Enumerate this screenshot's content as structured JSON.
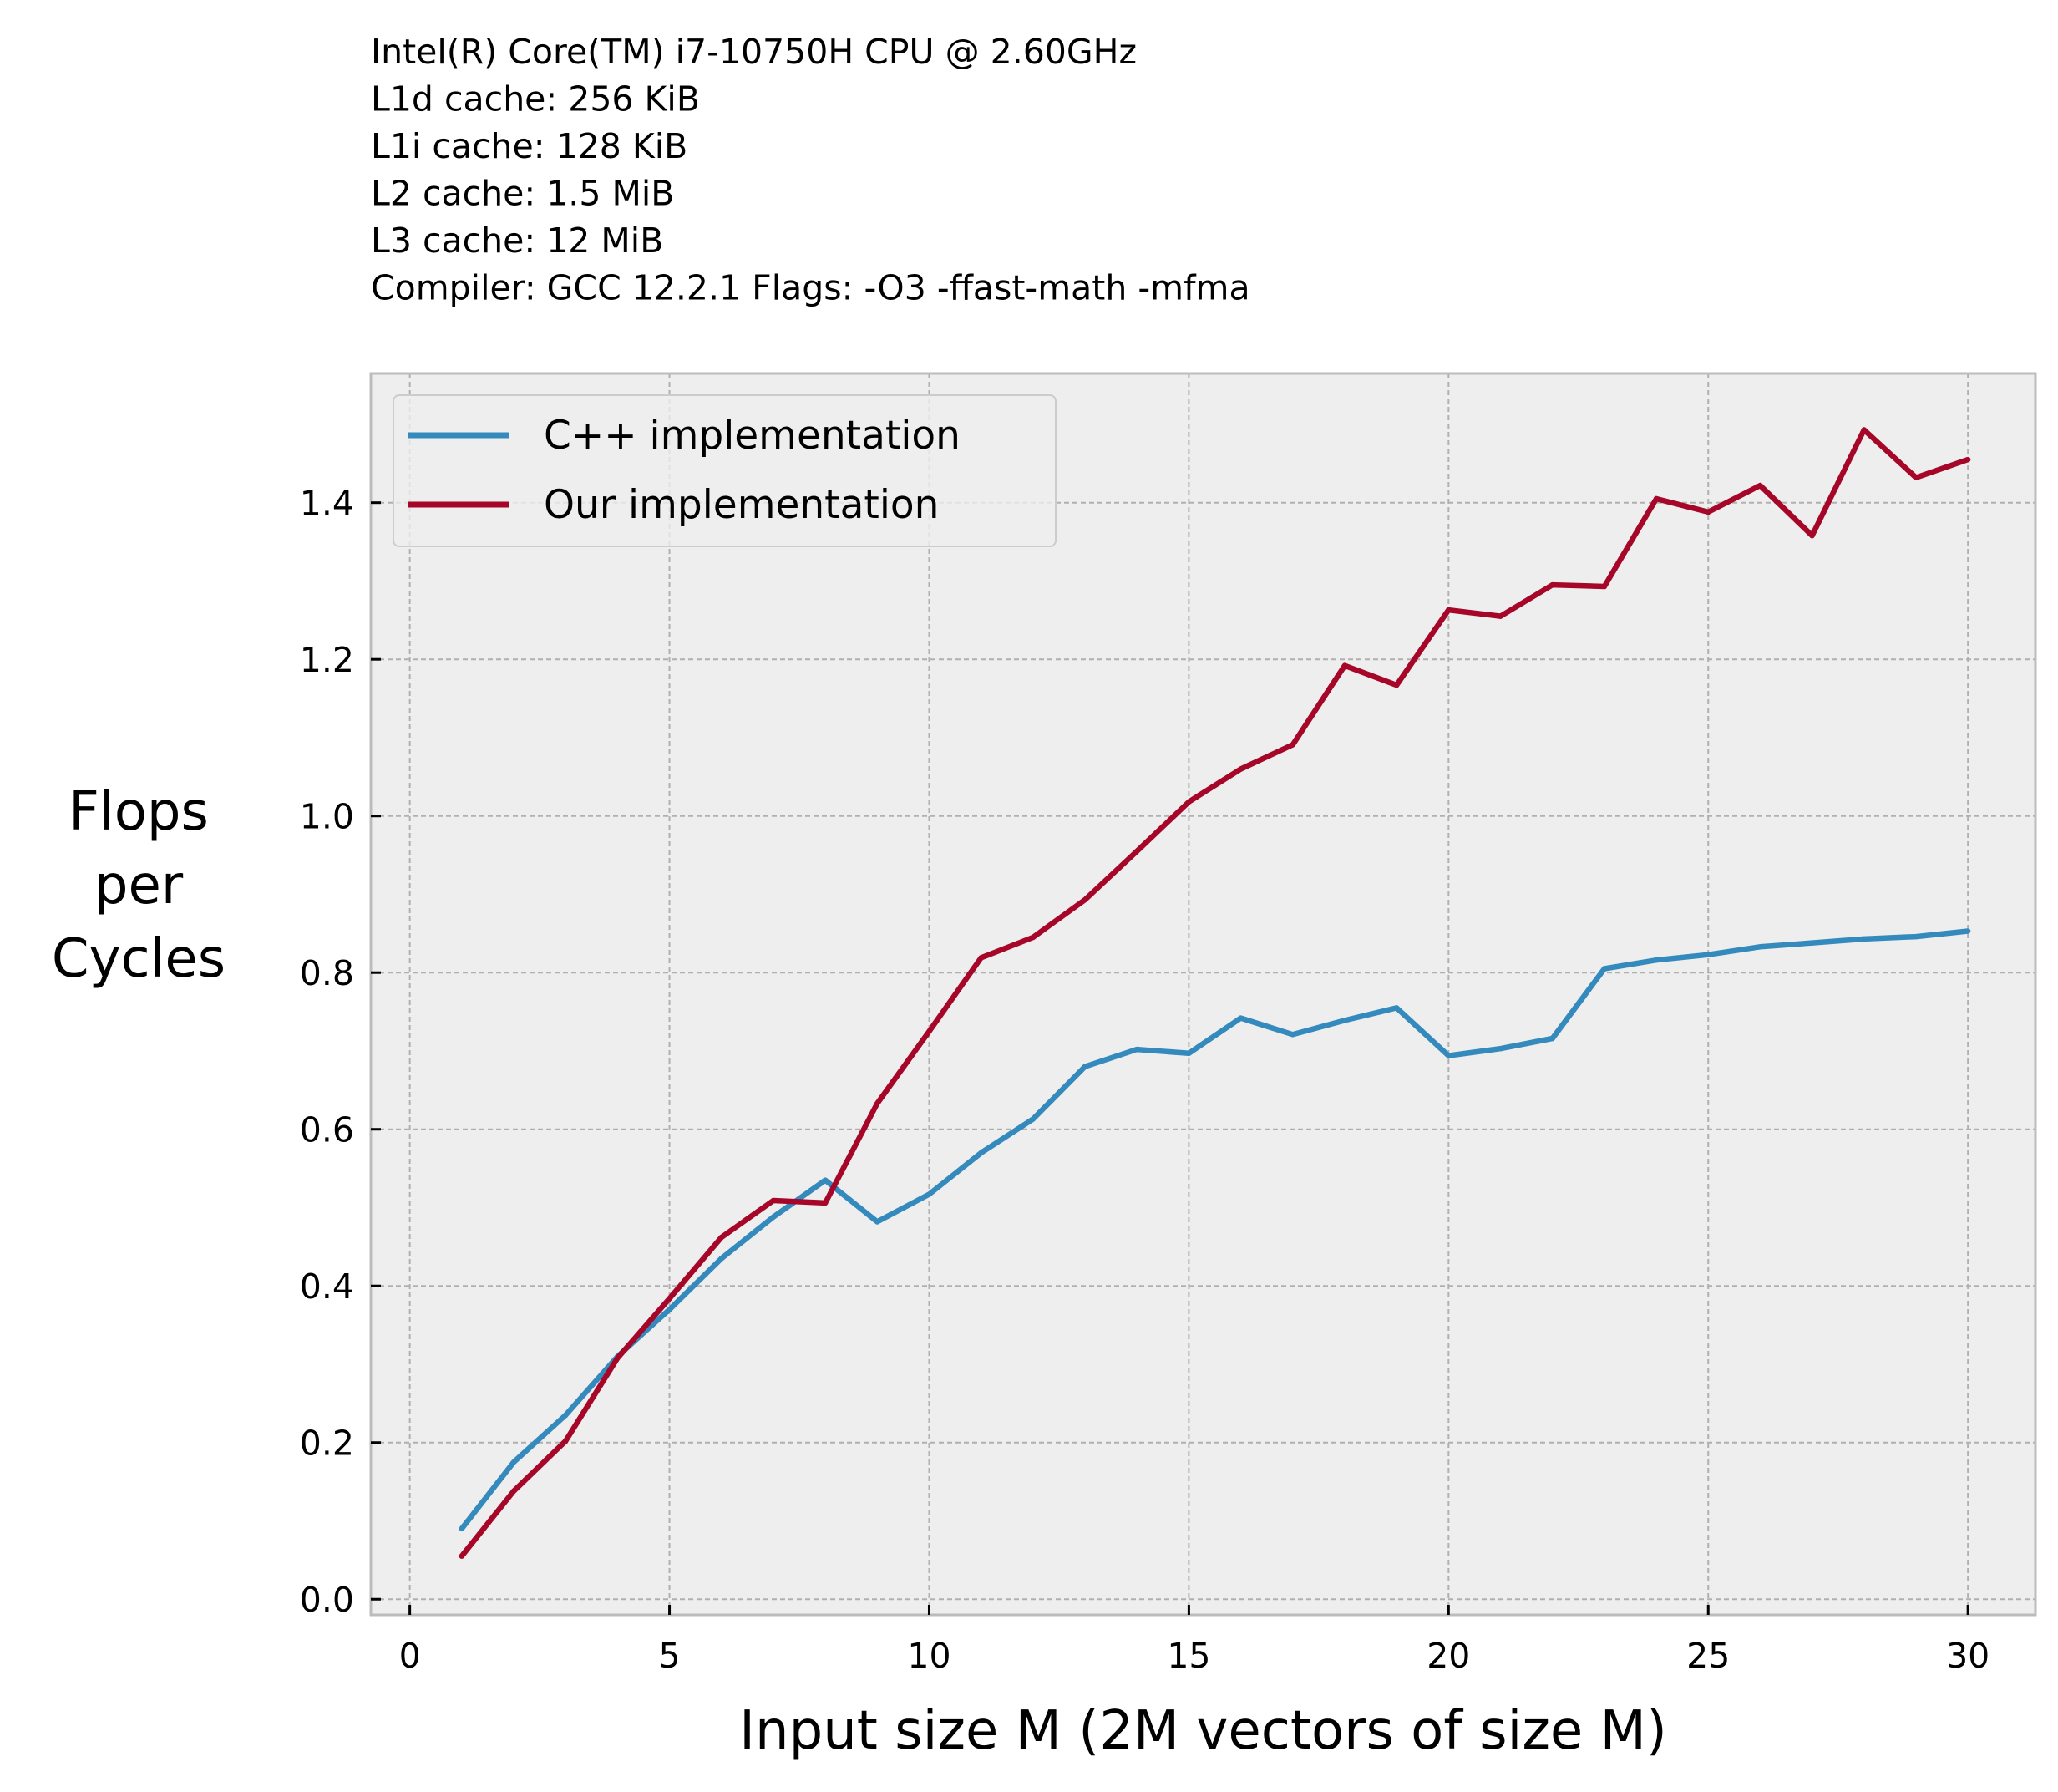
{
  "chart_data": {
    "type": "line",
    "subtitle_lines": [
      "Intel(R) Core(TM) i7-10750H CPU @ 2.60GHz",
      "L1d cache: 256 KiB",
      "L1i cache: 128 KiB",
      "L2 cache: 1.5 MiB",
      "L3 cache: 12 MiB",
      "Compiler:  GCC 12.2.1 Flags: -O3 -ffast-math -mfma"
    ],
    "xlabel": "Input size M (2M vectors of size M)",
    "ylabel_lines": [
      "Flops",
      "per",
      "Cycles"
    ],
    "xlim": [
      -0.75,
      31.3
    ],
    "ylim": [
      -0.02,
      1.565
    ],
    "xticks": [
      0,
      5,
      10,
      15,
      20,
      25,
      30
    ],
    "xtick_labels": [
      "0",
      "5",
      "10",
      "15",
      "20",
      "25",
      "30"
    ],
    "yticks": [
      0.0,
      0.2,
      0.4,
      0.6,
      0.8,
      1.0,
      1.2,
      1.4
    ],
    "ytick_labels": [
      "0.0",
      "0.2",
      "0.4",
      "0.6",
      "0.8",
      "1.0",
      "1.2",
      "1.4"
    ],
    "grid": true,
    "legend_position": "top-left",
    "x": [
      1,
      2,
      3,
      4,
      5,
      6,
      7,
      8,
      9,
      10,
      11,
      12,
      13,
      14,
      15,
      16,
      17,
      18,
      19,
      20,
      21,
      22,
      23,
      24,
      25,
      26,
      27,
      28,
      29,
      30
    ],
    "series": [
      {
        "name": "C++ implementation",
        "color": "#348abd",
        "values": [
          0.09,
          0.175,
          0.235,
          0.31,
          0.37,
          0.435,
          0.488,
          0.535,
          0.482,
          0.517,
          0.57,
          0.613,
          0.68,
          0.702,
          0.697,
          0.742,
          0.721,
          0.739,
          0.755,
          0.694,
          0.703,
          0.716,
          0.805,
          0.816,
          0.823,
          0.833,
          0.838,
          0.843,
          0.846,
          0.853
        ]
      },
      {
        "name": "Our implementation",
        "color": "#a60628",
        "values": [
          0.055,
          0.138,
          0.202,
          0.308,
          0.384,
          0.462,
          0.509,
          0.506,
          0.633,
          0.725,
          0.819,
          0.845,
          0.893,
          0.955,
          1.018,
          1.06,
          1.091,
          1.192,
          1.167,
          1.263,
          1.255,
          1.295,
          1.293,
          1.405,
          1.388,
          1.422,
          1.358,
          1.493,
          1.432,
          1.455
        ]
      }
    ],
    "style": {
      "plot_background": "#eeeeee",
      "axes_edge_color": "#bcbcbc",
      "grid_color": "#b0b0b0"
    }
  }
}
